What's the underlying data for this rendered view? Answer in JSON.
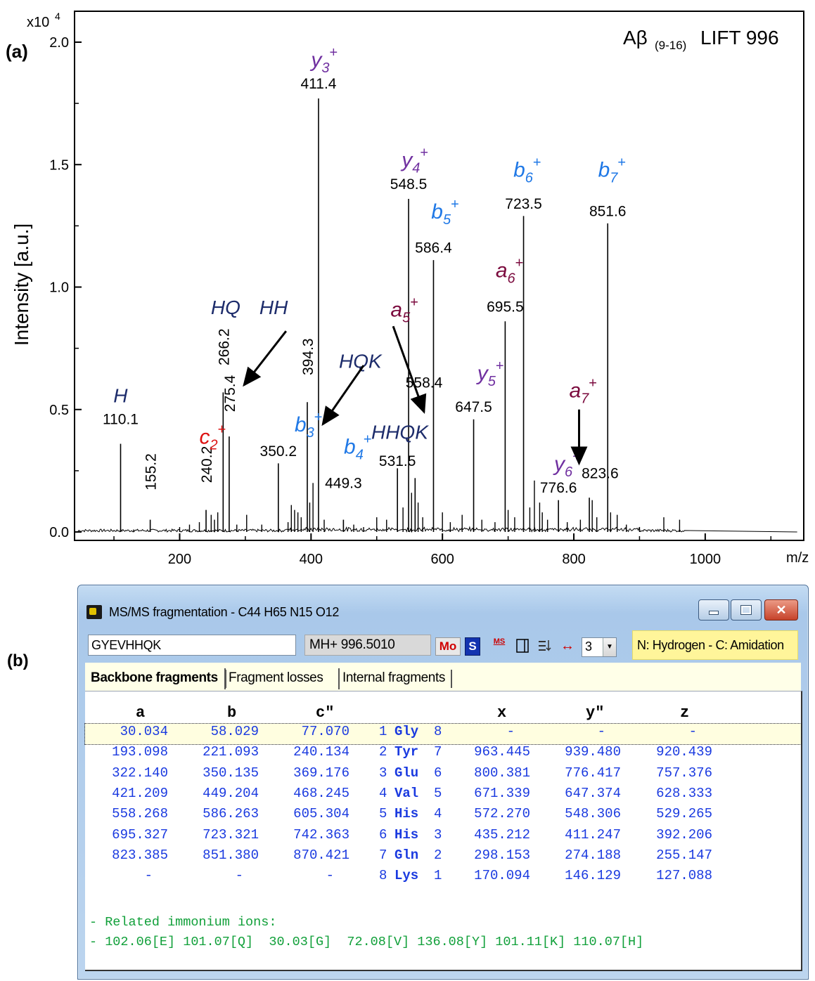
{
  "panel_a_label": "(a)",
  "panel_b_label": "(b)",
  "chart_data": {
    "type": "line",
    "title": "Aβ(9-16) LIFT 996",
    "title_main": "Aβ",
    "title_sub": "(9-16)",
    "title_rest": "LIFT 996",
    "xlabel": "m/z",
    "ylabel": "Intensity [a.u.]",
    "y_multiplier_base": "x10",
    "y_multiplier_exp": "4",
    "xlim": [
      40,
      1150
    ],
    "ylim": [
      0,
      2.05
    ],
    "xticks": [
      200,
      400,
      600,
      800,
      1000
    ],
    "yticks": [
      "0.0",
      "0.5",
      "1.0",
      "1.5",
      "2.0"
    ],
    "grid": false,
    "peaks": [
      {
        "mz": 110.1,
        "intensity": 0.36
      },
      {
        "mz": 155.2,
        "intensity": 0.05
      },
      {
        "mz": 240.2,
        "intensity": 0.09
      },
      {
        "mz": 266.2,
        "intensity": 0.57
      },
      {
        "mz": 275.4,
        "intensity": 0.39
      },
      {
        "mz": 350.2,
        "intensity": 0.28
      },
      {
        "mz": 394.3,
        "intensity": 0.53
      },
      {
        "mz": 411.4,
        "intensity": 1.77
      },
      {
        "mz": 449.3,
        "intensity": 0.05
      },
      {
        "mz": 531.5,
        "intensity": 0.26
      },
      {
        "mz": 548.5,
        "intensity": 1.36
      },
      {
        "mz": 558.4,
        "intensity": 0.22
      },
      {
        "mz": 586.4,
        "intensity": 1.11
      },
      {
        "mz": 647.5,
        "intensity": 0.46
      },
      {
        "mz": 695.5,
        "intensity": 0.86
      },
      {
        "mz": 723.5,
        "intensity": 1.29
      },
      {
        "mz": 776.6,
        "intensity": 0.13
      },
      {
        "mz": 823.6,
        "intensity": 0.14
      },
      {
        "mz": 851.6,
        "intensity": 1.26
      }
    ],
    "minor_peaks": [
      {
        "mz": 130,
        "intensity": 0.01
      },
      {
        "mz": 200,
        "intensity": 0.02
      },
      {
        "mz": 215,
        "intensity": 0.03
      },
      {
        "mz": 230,
        "intensity": 0.04
      },
      {
        "mz": 248,
        "intensity": 0.07
      },
      {
        "mz": 253,
        "intensity": 0.05
      },
      {
        "mz": 258,
        "intensity": 0.08
      },
      {
        "mz": 287,
        "intensity": 0.03
      },
      {
        "mz": 302,
        "intensity": 0.07
      },
      {
        "mz": 325,
        "intensity": 0.03
      },
      {
        "mz": 365,
        "intensity": 0.04
      },
      {
        "mz": 370,
        "intensity": 0.11
      },
      {
        "mz": 375,
        "intensity": 0.09
      },
      {
        "mz": 380,
        "intensity": 0.08
      },
      {
        "mz": 385,
        "intensity": 0.06
      },
      {
        "mz": 398,
        "intensity": 0.12
      },
      {
        "mz": 403,
        "intensity": 0.2
      },
      {
        "mz": 420,
        "intensity": 0.05
      },
      {
        "mz": 465,
        "intensity": 0.03
      },
      {
        "mz": 480,
        "intensity": 0.02
      },
      {
        "mz": 500,
        "intensity": 0.06
      },
      {
        "mz": 515,
        "intensity": 0.05
      },
      {
        "mz": 540,
        "intensity": 0.1
      },
      {
        "mz": 553,
        "intensity": 0.16
      },
      {
        "mz": 563,
        "intensity": 0.12
      },
      {
        "mz": 570,
        "intensity": 0.06
      },
      {
        "mz": 600,
        "intensity": 0.08
      },
      {
        "mz": 612,
        "intensity": 0.04
      },
      {
        "mz": 630,
        "intensity": 0.07
      },
      {
        "mz": 660,
        "intensity": 0.05
      },
      {
        "mz": 680,
        "intensity": 0.04
      },
      {
        "mz": 700,
        "intensity": 0.09
      },
      {
        "mz": 710,
        "intensity": 0.06
      },
      {
        "mz": 733,
        "intensity": 0.1
      },
      {
        "mz": 740,
        "intensity": 0.21
      },
      {
        "mz": 748,
        "intensity": 0.12
      },
      {
        "mz": 752,
        "intensity": 0.08
      },
      {
        "mz": 760,
        "intensity": 0.05
      },
      {
        "mz": 790,
        "intensity": 0.04
      },
      {
        "mz": 810,
        "intensity": 0.05
      },
      {
        "mz": 828,
        "intensity": 0.13
      },
      {
        "mz": 835,
        "intensity": 0.06
      },
      {
        "mz": 856,
        "intensity": 0.08
      },
      {
        "mz": 866,
        "intensity": 0.07
      },
      {
        "mz": 880,
        "intensity": 0.03
      },
      {
        "mz": 900,
        "intensity": 0.02
      },
      {
        "mz": 937,
        "intensity": 0.06
      },
      {
        "mz": 961,
        "intensity": 0.05
      }
    ],
    "peak_labels": [
      {
        "text": "110.1",
        "mz": 110.1,
        "y": 0.44,
        "rotated": false
      },
      {
        "text": "155.2",
        "mz": 155.2,
        "y": 0.17,
        "rotated": true
      },
      {
        "text": "240.2",
        "mz": 240.2,
        "y": 0.2,
        "rotated": true
      },
      {
        "text": "266.2",
        "mz": 266.2,
        "y": 0.68,
        "rotated": true
      },
      {
        "text": "275.4",
        "mz": 275.4,
        "y": 0.49,
        "rotated": true
      },
      {
        "text": "350.2",
        "mz": 350.2,
        "y": 0.31,
        "rotated": false
      },
      {
        "text": "394.3",
        "mz": 394.3,
        "y": 0.64,
        "rotated": true
      },
      {
        "text": "411.4",
        "mz": 411.4,
        "y": 1.81,
        "rotated": false
      },
      {
        "text": "449.3",
        "mz": 449.3,
        "y": 0.18,
        "rotated": false
      },
      {
        "text": "531.5",
        "mz": 531.5,
        "y": 0.27,
        "rotated": false
      },
      {
        "text": "548.5",
        "mz": 548.5,
        "y": 1.4,
        "rotated": false
      },
      {
        "text": "558.4",
        "mz": 572,
        "y": 0.59,
        "rotated": false
      },
      {
        "text": "586.4",
        "mz": 586.4,
        "y": 1.14,
        "rotated": false
      },
      {
        "text": "647.5",
        "mz": 647.5,
        "y": 0.49,
        "rotated": false
      },
      {
        "text": "695.5",
        "mz": 695.5,
        "y": 0.9,
        "rotated": false
      },
      {
        "text": "723.5",
        "mz": 723.5,
        "y": 1.32,
        "rotated": false
      },
      {
        "text": "776.6",
        "mz": 776.6,
        "y": 0.16,
        "rotated": false
      },
      {
        "text": "823.6",
        "mz": 840,
        "y": 0.22,
        "rotated": false
      },
      {
        "text": "851.6",
        "mz": 851.6,
        "y": 1.29,
        "rotated": false
      }
    ],
    "ion_labels": [
      {
        "base": "y",
        "sub": "3",
        "sup": "+",
        "color": "#7030a0",
        "mz": 415,
        "y": 1.9
      },
      {
        "base": "y",
        "sub": "4",
        "sup": "+",
        "color": "#7030a0",
        "mz": 553,
        "y": 1.49
      },
      {
        "base": "b",
        "sub": "6",
        "sup": "+",
        "color": "#1f78e6",
        "mz": 723,
        "y": 1.45
      },
      {
        "base": "b",
        "sub": "7",
        "sup": "+",
        "color": "#1f78e6",
        "mz": 852,
        "y": 1.45
      },
      {
        "base": "b",
        "sub": "5",
        "sup": "+",
        "color": "#1f78e6",
        "mz": 598,
        "y": 1.28
      },
      {
        "base": "a",
        "sub": "6",
        "sup": "+",
        "color": "#7b0b3e",
        "mz": 696,
        "y": 1.04
      },
      {
        "base": "a",
        "sub": "5",
        "sup": "+",
        "color": "#7b0b3e",
        "mz": 536,
        "y": 0.88
      },
      {
        "base": "y",
        "sub": "5",
        "sup": "+",
        "color": "#7030a0",
        "mz": 668,
        "y": 0.62
      },
      {
        "base": "a",
        "sub": "7",
        "sup": "+",
        "color": "#7b0b3e",
        "mz": 808,
        "y": 0.55
      },
      {
        "base": "b",
        "sub": "3",
        "sup": "+",
        "color": "#1f78e6",
        "mz": 390,
        "y": 0.41
      },
      {
        "base": "c",
        "sub": "2",
        "sup": "+",
        "color": "#dd1111",
        "mz": 245,
        "y": 0.36
      },
      {
        "base": "b",
        "sub": "4",
        "sup": "+",
        "color": "#1f78e6",
        "mz": 465,
        "y": 0.32
      },
      {
        "base": "y",
        "sub": "6",
        "sup": "+",
        "color": "#7030a0",
        "mz": 785,
        "y": 0.25
      }
    ],
    "immonium_labels": [
      {
        "text": "H",
        "mz": 110,
        "y": 0.53
      },
      {
        "text": "HQ",
        "mz": 270,
        "y": 0.89
      },
      {
        "text": "HH",
        "mz": 343,
        "y": 0.89
      },
      {
        "text": "HQK",
        "mz": 475,
        "y": 0.67
      },
      {
        "text": "HHQK",
        "mz": 535,
        "y": 0.38
      }
    ],
    "arrows": [
      {
        "from": [
          362,
          0.82
        ],
        "to": [
          298,
          0.6
        ]
      },
      {
        "from": [
          480,
          0.68
        ],
        "to": [
          418,
          0.44
        ]
      },
      {
        "from": [
          525,
          0.84
        ],
        "to": [
          572,
          0.49
        ]
      },
      {
        "from": [
          808,
          0.5
        ],
        "to": [
          808,
          0.28
        ]
      }
    ]
  },
  "window": {
    "title": "MS/MS fragmentation -  C44 H65 N15 O12",
    "sequence_value": "GYEVHHQK",
    "mh_label": "MH+   996.5010",
    "btn_mo": "Mo",
    "btn_s": "S",
    "btn_ms": "MS",
    "charge_value": "3",
    "termini": "N: Hydrogen -  C: Amidation",
    "tabs": [
      "Backbone fragments",
      "Fragment losses",
      "Internal fragments"
    ],
    "columns": {
      "a": "a",
      "b": "b",
      "c": "c\"",
      "x": "x",
      "y": "y\"",
      "z": "z"
    },
    "rows": [
      {
        "a": "30.034",
        "b": "58.029",
        "c": "77.070",
        "n": "1",
        "res": "Gly",
        "rn": "8",
        "x": "-",
        "y": "-",
        "z": "-"
      },
      {
        "a": "193.098",
        "b": "221.093",
        "c": "240.134",
        "n": "2",
        "res": "Tyr",
        "rn": "7",
        "x": "963.445",
        "y": "939.480",
        "z": "920.439"
      },
      {
        "a": "322.140",
        "b": "350.135",
        "c": "369.176",
        "n": "3",
        "res": "Glu",
        "rn": "6",
        "x": "800.381",
        "y": "776.417",
        "z": "757.376"
      },
      {
        "a": "421.209",
        "b": "449.204",
        "c": "468.245",
        "n": "4",
        "res": "Val",
        "rn": "5",
        "x": "671.339",
        "y": "647.374",
        "z": "628.333"
      },
      {
        "a": "558.268",
        "b": "586.263",
        "c": "605.304",
        "n": "5",
        "res": "His",
        "rn": "4",
        "x": "572.270",
        "y": "548.306",
        "z": "529.265"
      },
      {
        "a": "695.327",
        "b": "723.321",
        "c": "742.363",
        "n": "6",
        "res": "His",
        "rn": "3",
        "x": "435.212",
        "y": "411.247",
        "z": "392.206"
      },
      {
        "a": "823.385",
        "b": "851.380",
        "c": "870.421",
        "n": "7",
        "res": "Gln",
        "rn": "2",
        "x": "298.153",
        "y": "274.188",
        "z": "255.147"
      },
      {
        "a": "-",
        "b": "-",
        "c": "-",
        "n": "8",
        "res": "Lys",
        "rn": "1",
        "x": "170.094",
        "y": "146.129",
        "z": "127.088"
      }
    ],
    "immonium_title": "- Related immonium ions:",
    "immonium_line": "- 102.06[E] 101.07[Q]  30.03[G]  72.08[V] 136.08[Y] 101.11[K] 110.07[H]"
  }
}
